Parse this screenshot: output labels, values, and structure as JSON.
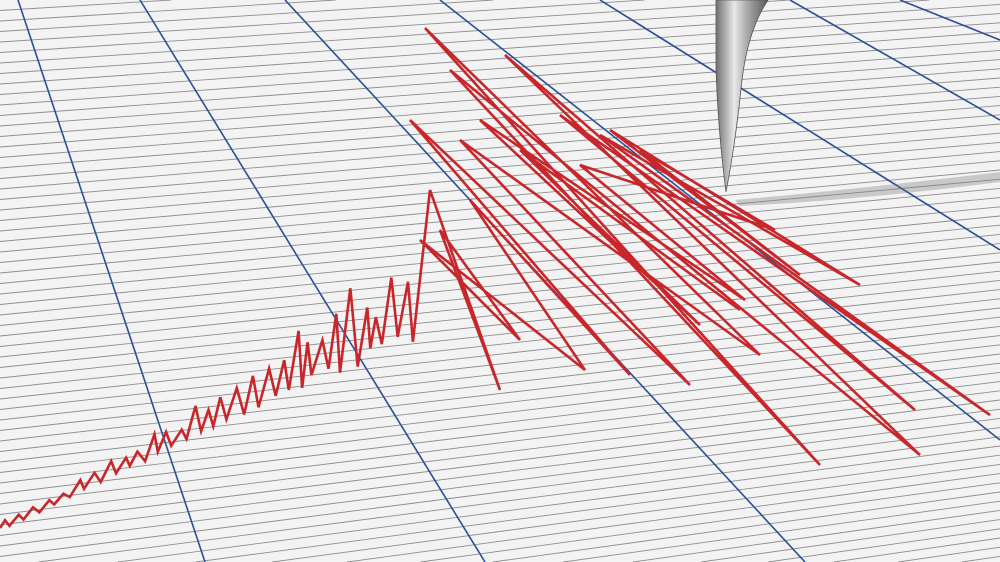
{
  "colors": {
    "paper": "#f3f3f3",
    "grid_line": "#8e8e8e",
    "guide_line": "#2a4f9a",
    "trace": "#c8262a",
    "needle": "#b8b8b8",
    "needle_shadow": "#9a9a9a"
  },
  "icons": {
    "needle": "seismograph-needle-icon"
  }
}
